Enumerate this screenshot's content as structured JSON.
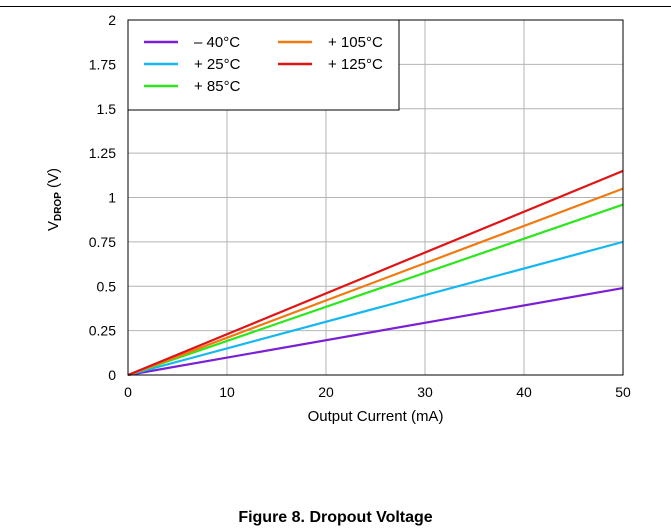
{
  "caption": "Figure 8. Dropout Voltage",
  "chart_data": {
    "type": "line",
    "xlabel": "Output Current (mA)",
    "ylabel": {
      "main": "V",
      "sub": "DROP",
      "unit": " (V)"
    },
    "xlim": [
      0,
      50
    ],
    "ylim": [
      0,
      2
    ],
    "x_ticks": [
      "0",
      "10",
      "20",
      "30",
      "40",
      "50"
    ],
    "y_ticks": [
      "0",
      "0.25",
      "0.5",
      "0.75",
      "1",
      "1.25",
      "1.5",
      "1.75",
      "2"
    ],
    "grid": true,
    "legend_position": "top-left",
    "series": [
      {
        "name": "– 40°C",
        "color": "#7b1fd6",
        "x": [
          0,
          50
        ],
        "y": [
          0,
          0.49
        ]
      },
      {
        "name": "+ 25°C",
        "color": "#16b7f0",
        "x": [
          0,
          50
        ],
        "y": [
          0,
          0.75
        ]
      },
      {
        "name": "+ 85°C",
        "color": "#2ee61e",
        "x": [
          0,
          50
        ],
        "y": [
          0,
          0.96
        ]
      },
      {
        "name": "+ 105°C",
        "color": "#f07a10",
        "x": [
          0,
          50
        ],
        "y": [
          0,
          1.05
        ]
      },
      {
        "name": "+ 125°C",
        "color": "#e01414",
        "x": [
          0,
          50
        ],
        "y": [
          0,
          1.15
        ]
      }
    ]
  }
}
